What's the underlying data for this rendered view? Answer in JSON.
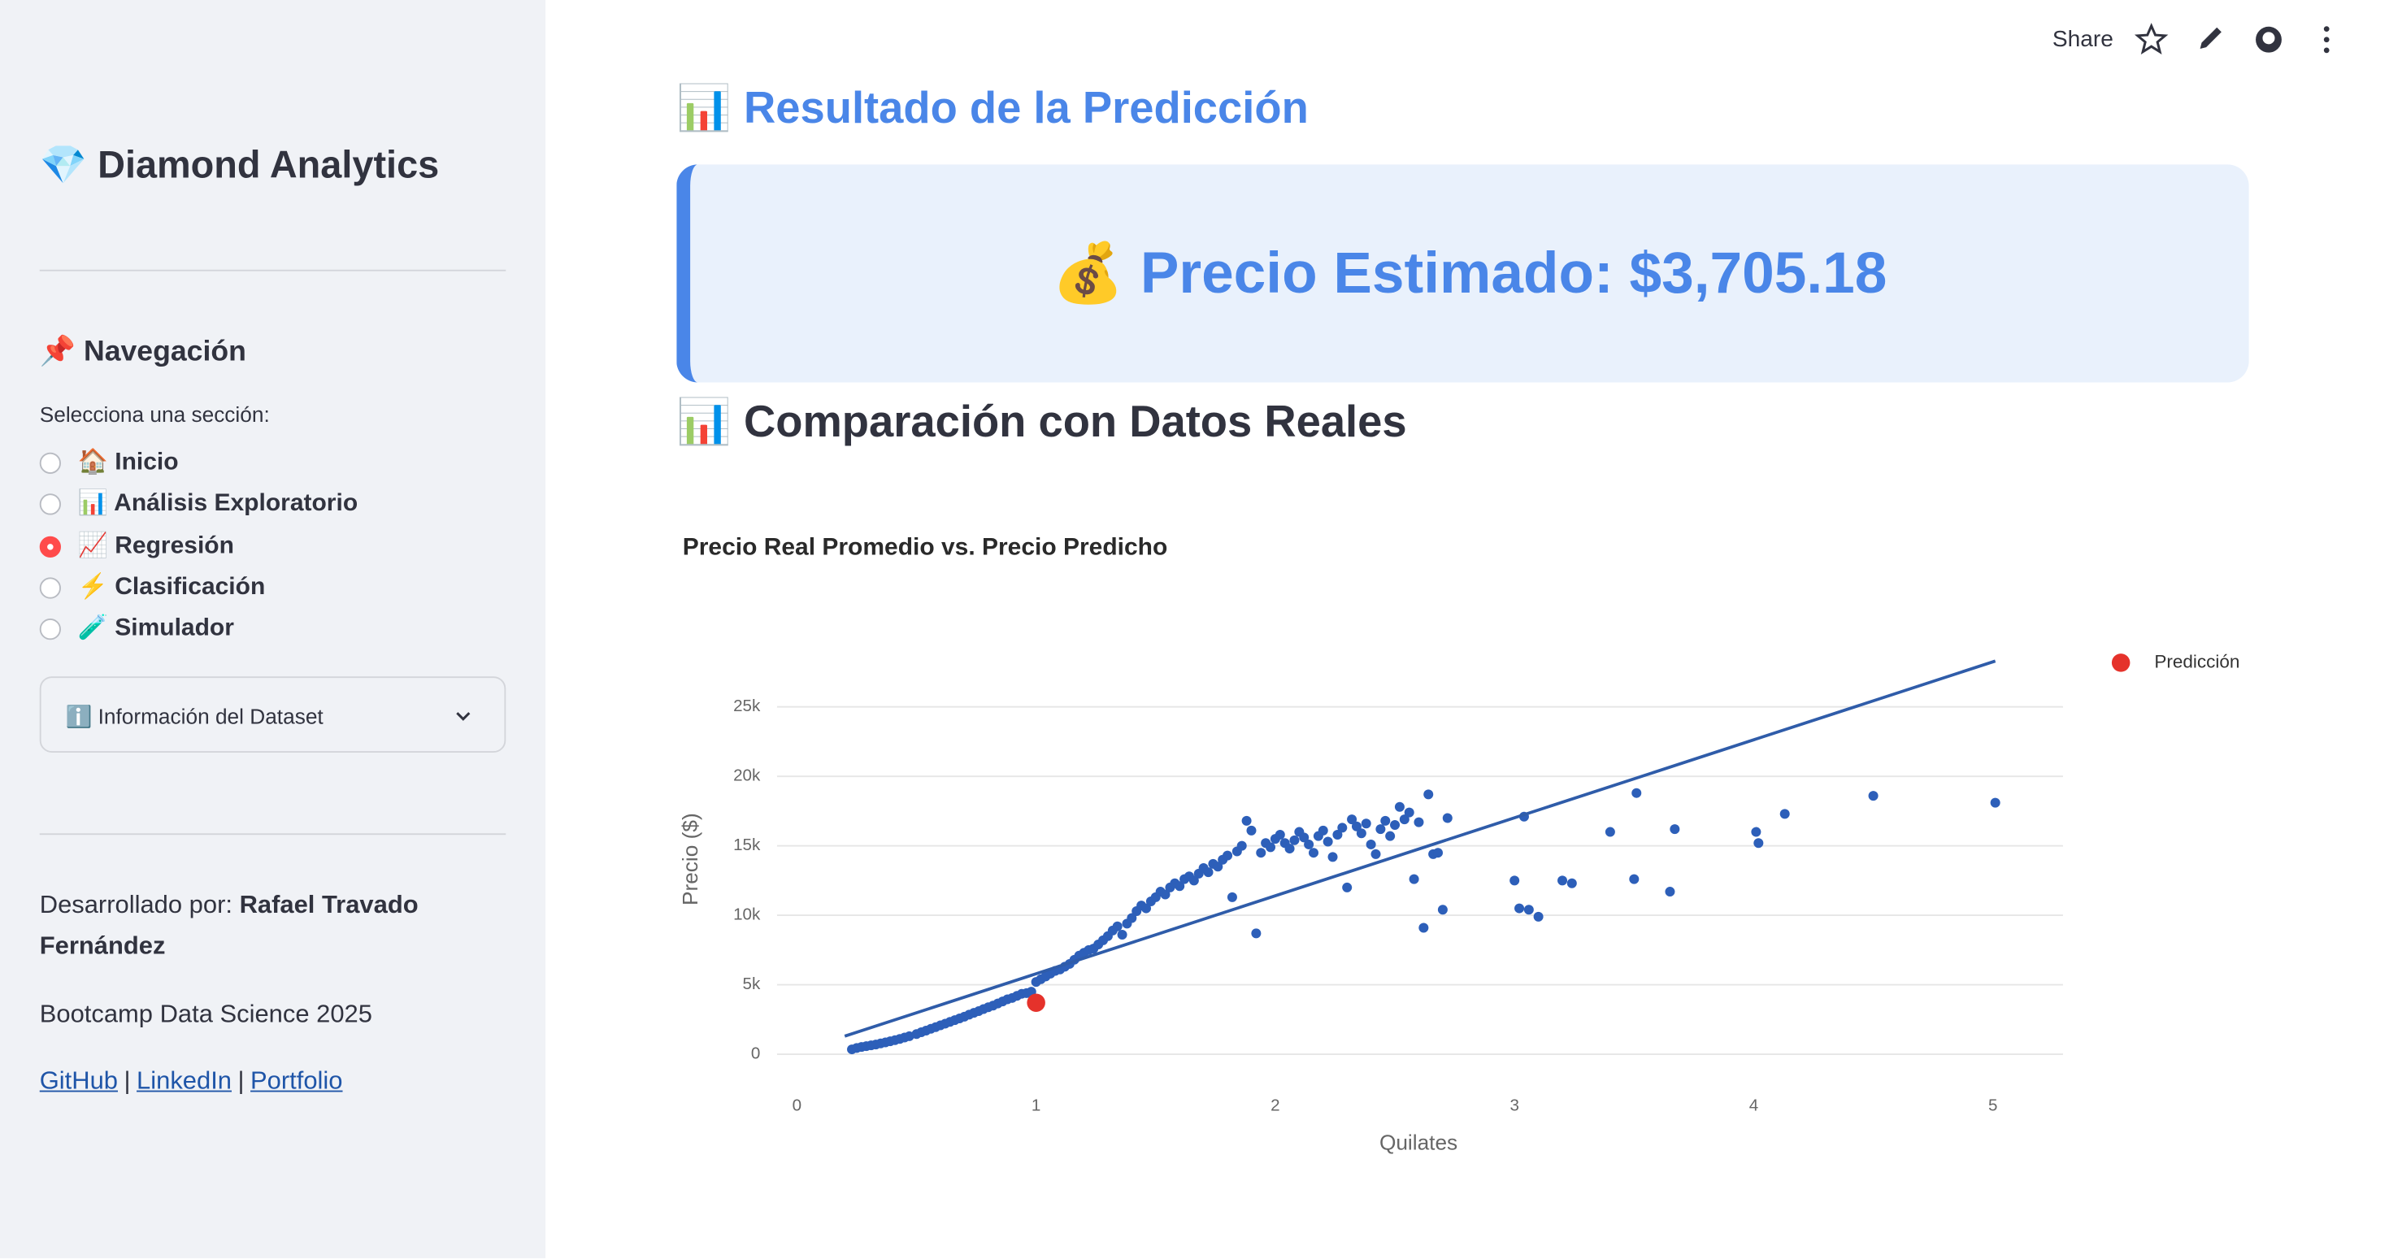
{
  "toolbar": {
    "share": "Share"
  },
  "sidebar": {
    "title": "💎 Diamond Analytics",
    "nav_heading": "📌 Navegación",
    "radio_label": "Selecciona una sección:",
    "options": [
      "🏠 Inicio",
      "📊 Análisis Exploratorio",
      "📈 Regresión",
      "⚡ Clasificación",
      "🧪 Simulador"
    ],
    "selected": 2,
    "expander": "ℹ️ Información del Dataset",
    "credit_label": "Desarrollado por:",
    "credit_name": "Rafael Travado Fernández",
    "bootcamp": "Bootcamp Data Science 2025",
    "links": [
      "GitHub",
      "LinkedIn",
      "Portfolio"
    ],
    "link_separator": "|"
  },
  "main": {
    "heading": "📊 Resultado de la Predicción",
    "result": "💰 Precio Estimado: $3,705.18",
    "subheading": "📊 Comparación con Datos Reales"
  },
  "chart_data": {
    "type": "scatter",
    "title": "Precio Real Promedio vs. Precio Predicho",
    "x_label": "Quilates",
    "y_label": "Precio ($)",
    "xlim": [
      -0.083,
      5.293
    ],
    "ylim": [
      -1000,
      29500
    ],
    "xticks": [
      0,
      1,
      2,
      3,
      4,
      5
    ],
    "yticks": [
      0,
      {
        "value": 5000,
        "label": "5k"
      },
      {
        "value": 10000,
        "label": "10k"
      },
      {
        "value": 15000,
        "label": "15k"
      },
      {
        "value": 20000,
        "label": "20k"
      },
      {
        "value": 25000,
        "label": "25k"
      }
    ],
    "grid": true,
    "legend": "top-right",
    "series": [
      {
        "mode": "markers",
        "color": "#2d5fb9",
        "x": [
          0.23,
          0.25,
          0.27,
          0.29,
          0.31,
          0.33,
          0.35,
          0.37,
          0.39,
          0.41,
          0.43,
          0.45,
          0.47,
          0.5,
          0.52,
          0.54,
          0.56,
          0.58,
          0.6,
          0.62,
          0.64,
          0.66,
          0.68,
          0.7,
          0.72,
          0.74,
          0.76,
          0.78,
          0.8,
          0.82,
          0.84,
          0.86,
          0.88,
          0.9,
          0.92,
          0.94,
          0.96,
          0.98,
          1.0,
          1.02,
          1.04,
          1.06,
          1.08,
          1.1,
          1.12,
          1.14,
          1.16,
          1.18,
          1.2,
          1.22,
          1.24,
          1.26,
          1.28,
          1.3,
          1.32,
          1.34,
          1.36,
          1.38,
          1.4,
          1.42,
          1.44,
          1.46,
          1.48,
          1.5,
          1.52,
          1.54,
          1.56,
          1.58,
          1.6,
          1.62,
          1.64,
          1.66,
          1.68,
          1.7,
          1.72,
          1.74,
          1.76,
          1.78,
          1.8,
          1.82,
          1.84,
          1.86,
          1.88,
          1.9,
          1.92,
          1.94,
          1.96,
          1.98,
          2.0,
          2.02,
          2.04,
          2.06,
          2.08,
          2.1,
          2.12,
          2.14,
          2.16,
          2.18,
          2.2,
          2.22,
          2.24,
          2.26,
          2.28,
          2.3,
          2.32,
          2.34,
          2.36,
          2.38,
          2.4,
          2.42,
          2.44,
          2.46,
          2.48,
          2.5,
          2.52,
          2.54,
          2.56,
          2.58,
          2.6,
          2.62,
          2.64,
          2.66,
          2.68,
          2.7,
          2.72,
          3.0,
          3.02,
          3.04,
          3.06,
          3.1,
          3.2,
          3.24,
          3.4,
          3.5,
          3.51,
          3.65,
          3.67,
          4.01,
          4.02,
          4.13,
          4.5,
          5.01
        ],
        "values": [
          350,
          450,
          520,
          580,
          640,
          700,
          780,
          850,
          930,
          1010,
          1100,
          1200,
          1300,
          1450,
          1580,
          1700,
          1830,
          1950,
          2080,
          2200,
          2330,
          2450,
          2580,
          2700,
          2850,
          2980,
          3100,
          3250,
          3380,
          3500,
          3650,
          3800,
          3950,
          4050,
          4200,
          4350,
          4400,
          4500,
          5200,
          5400,
          5600,
          5800,
          6000,
          6100,
          6300,
          6500,
          6800,
          7100,
          7300,
          7500,
          7600,
          7900,
          8200,
          8500,
          8900,
          9200,
          8600,
          9400,
          9800,
          10300,
          10700,
          10500,
          11000,
          11300,
          11700,
          11500,
          12000,
          12300,
          12100,
          12600,
          12800,
          12500,
          13000,
          13400,
          13100,
          13700,
          13500,
          14000,
          14300,
          11300,
          14600,
          15000,
          16800,
          16100,
          8700,
          14500,
          15200,
          14900,
          15500,
          15800,
          15200,
          14800,
          15400,
          16000,
          15600,
          15100,
          14500,
          15700,
          16100,
          15300,
          14200,
          15800,
          16300,
          12000,
          16900,
          16400,
          15900,
          16600,
          15100,
          14400,
          16200,
          16800,
          15700,
          16500,
          17800,
          16900,
          17400,
          12600,
          16700,
          9100,
          18700,
          14400,
          14500,
          10400,
          17000,
          12500,
          10500,
          17100,
          10400,
          9900,
          12500,
          12300,
          16000,
          12600,
          18800,
          11700,
          16200,
          16000,
          15200,
          17300,
          18600,
          18100
        ]
      },
      {
        "mode": "lines",
        "color": "#2f5ca9",
        "x": [
          0.2,
          5.01
        ],
        "values": [
          1300,
          28300
        ]
      },
      {
        "name": "Predicción",
        "mode": "markers",
        "color": "#e5322b",
        "x": [
          1.0
        ],
        "values": [
          3705.18
        ]
      }
    ]
  }
}
